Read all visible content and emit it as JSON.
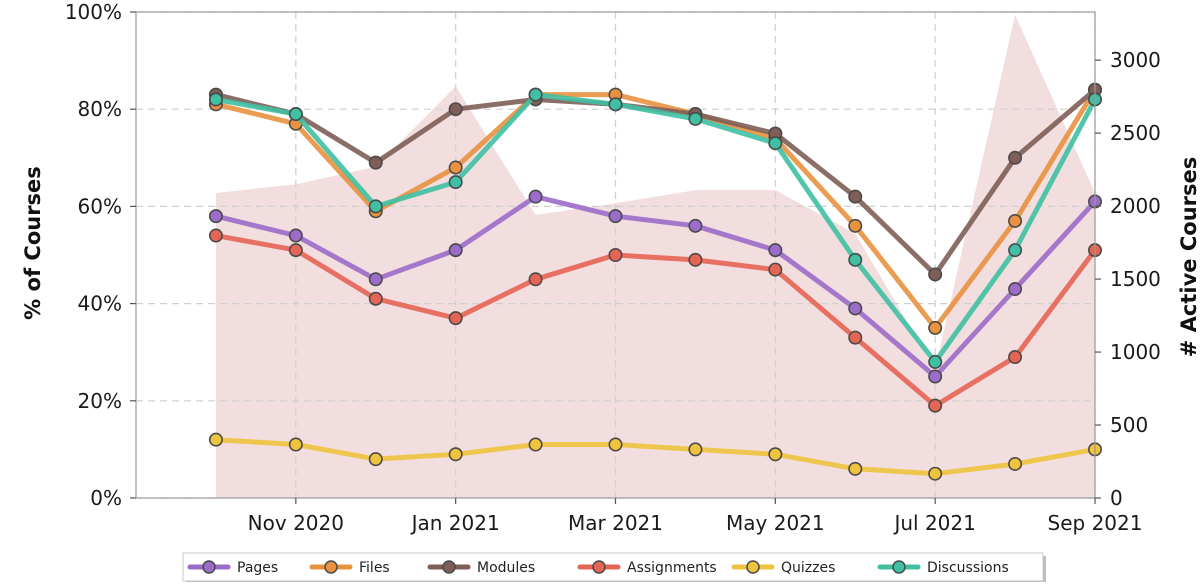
{
  "chart_data": {
    "type": "line",
    "ylabel_left": "% of Courses",
    "ylabel_right": "# Active Courses",
    "x_ticks": [
      "Nov 2020",
      "Jan 2021",
      "Mar 2021",
      "May 2021",
      "Jul 2021",
      "Sep 2021"
    ],
    "x_tick_months": [
      "2020-11",
      "2021-01",
      "2021-03",
      "2021-05",
      "2021-07",
      "2021-09"
    ],
    "x": [
      "2020-10",
      "2020-11",
      "2020-12",
      "2021-01",
      "2021-02",
      "2021-03",
      "2021-04",
      "2021-05",
      "2021-06",
      "2021-07",
      "2021-08",
      "2021-09"
    ],
    "x_range": [
      "2020-09",
      "2021-09"
    ],
    "y_left_ticks": [
      "0%",
      "20%",
      "40%",
      "60%",
      "80%",
      "100%"
    ],
    "y_left_tick_values": [
      0,
      20,
      40,
      60,
      80,
      100
    ],
    "ylim_left": [
      0,
      100
    ],
    "y_right_ticks": [
      "0",
      "500",
      "1000",
      "1500",
      "2000",
      "2500",
      "3000"
    ],
    "y_right_tick_values": [
      0,
      500,
      1000,
      1500,
      2000,
      2500,
      3000
    ],
    "ylim_right": [
      0,
      3330
    ],
    "grid": true,
    "legend_position": "bottom",
    "active_courses": {
      "x": [
        "2020-10",
        "2020-11",
        "2020-12",
        "2021-01",
        "2021-02",
        "2021-03",
        "2021-04",
        "2021-05",
        "2021-06",
        "2021-07",
        "2021-08",
        "2021-09"
      ],
      "values": [
        2090,
        2150,
        2270,
        2820,
        1940,
        2020,
        2110,
        2110,
        1810,
        880,
        3310,
        2090
      ],
      "color": "#f2dede"
    },
    "series": [
      {
        "name": "Pages",
        "color": "#9b6cc9",
        "values": [
          58,
          54,
          45,
          51,
          62,
          58,
          56,
          51,
          39,
          25,
          43,
          61
        ]
      },
      {
        "name": "Files",
        "color": "#e8913f",
        "values": [
          81,
          77,
          59,
          68,
          83,
          83,
          79,
          74,
          56,
          35,
          57,
          84
        ]
      },
      {
        "name": "Modules",
        "color": "#7e5e56",
        "values": [
          83,
          79,
          69,
          80,
          82,
          81,
          79,
          75,
          62,
          46,
          70,
          84
        ]
      },
      {
        "name": "Assignments",
        "color": "#e66454",
        "values": [
          54,
          51,
          41,
          37,
          45,
          50,
          49,
          47,
          33,
          19,
          29,
          51
        ]
      },
      {
        "name": "Quizzes",
        "color": "#eec33d",
        "values": [
          12,
          11,
          8,
          9,
          11,
          11,
          10,
          9,
          6,
          5,
          7,
          10
        ]
      },
      {
        "name": "Discussions",
        "color": "#3fc0a3",
        "values": [
          82,
          79,
          60,
          65,
          83,
          81,
          78,
          73,
          49,
          28,
          51,
          82
        ]
      }
    ]
  }
}
